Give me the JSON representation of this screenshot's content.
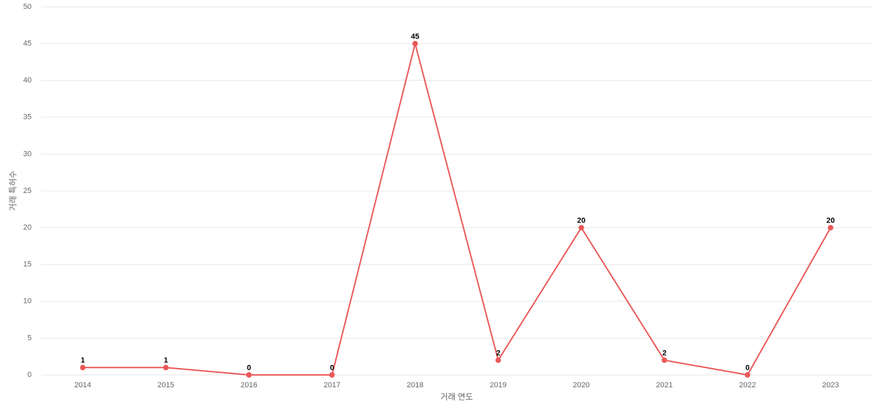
{
  "chart_data": {
    "type": "line",
    "x_label": "거래 연도",
    "y_label": "거래 특허수",
    "categories": [
      "2014",
      "2015",
      "2016",
      "2017",
      "2018",
      "2019",
      "2020",
      "2021",
      "2022",
      "2023"
    ],
    "series": [
      {
        "name": "거래 특허수",
        "color": "#eb5757",
        "values": [
          1,
          1,
          0,
          0,
          45,
          2,
          20,
          2,
          0,
          20
        ]
      }
    ],
    "ylim": [
      0,
      50
    ],
    "yticks": [
      0,
      5,
      10,
      15,
      20,
      25,
      30,
      35,
      40,
      45,
      50
    ],
    "grid": true
  }
}
